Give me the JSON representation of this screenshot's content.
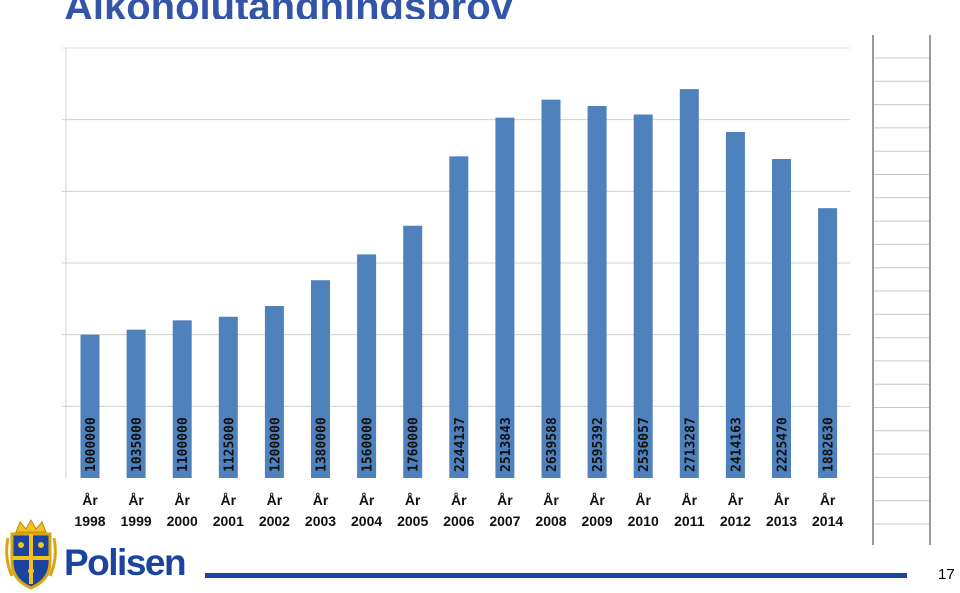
{
  "page": {
    "title": "Alkoholutandningsprov",
    "page_number": "17",
    "brand": "Polisen"
  },
  "chart_data": {
    "type": "bar",
    "title": "",
    "xlabel": "",
    "ylabel": "",
    "ylim": [
      0,
      3000000
    ],
    "grid": true,
    "color": "#4f81bd",
    "categories": [
      "År 1998",
      "År 1999",
      "År 2000",
      "År 2001",
      "År 2002",
      "År 2003",
      "År 2004",
      "År 2005",
      "År 2006",
      "År 2007",
      "År 2008",
      "År 2009",
      "År 2010",
      "År 2011",
      "År 2012",
      "År 2013",
      "År 2014"
    ],
    "category_prefix": "År",
    "years": [
      "1998",
      "1999",
      "2000",
      "2001",
      "2002",
      "2003",
      "2004",
      "2005",
      "2006",
      "2007",
      "2008",
      "2009",
      "2010",
      "2011",
      "2012",
      "2013",
      "2014"
    ],
    "values": [
      1000000,
      1035000,
      1100000,
      1125000,
      1200000,
      1380000,
      1560000,
      1760000,
      2244137,
      2513843,
      2639588,
      2595392,
      2536057,
      2713287,
      2414163,
      2225470,
      1882630
    ],
    "value_labels": [
      "1000000",
      "1035000",
      "1100000",
      "1125000",
      "1200000",
      "1380000",
      "1560000",
      "1760000",
      "2244137",
      "2513843",
      "2639588",
      "2595392",
      "2536057",
      "2713287",
      "2414163",
      "2225470",
      "1882630"
    ]
  }
}
